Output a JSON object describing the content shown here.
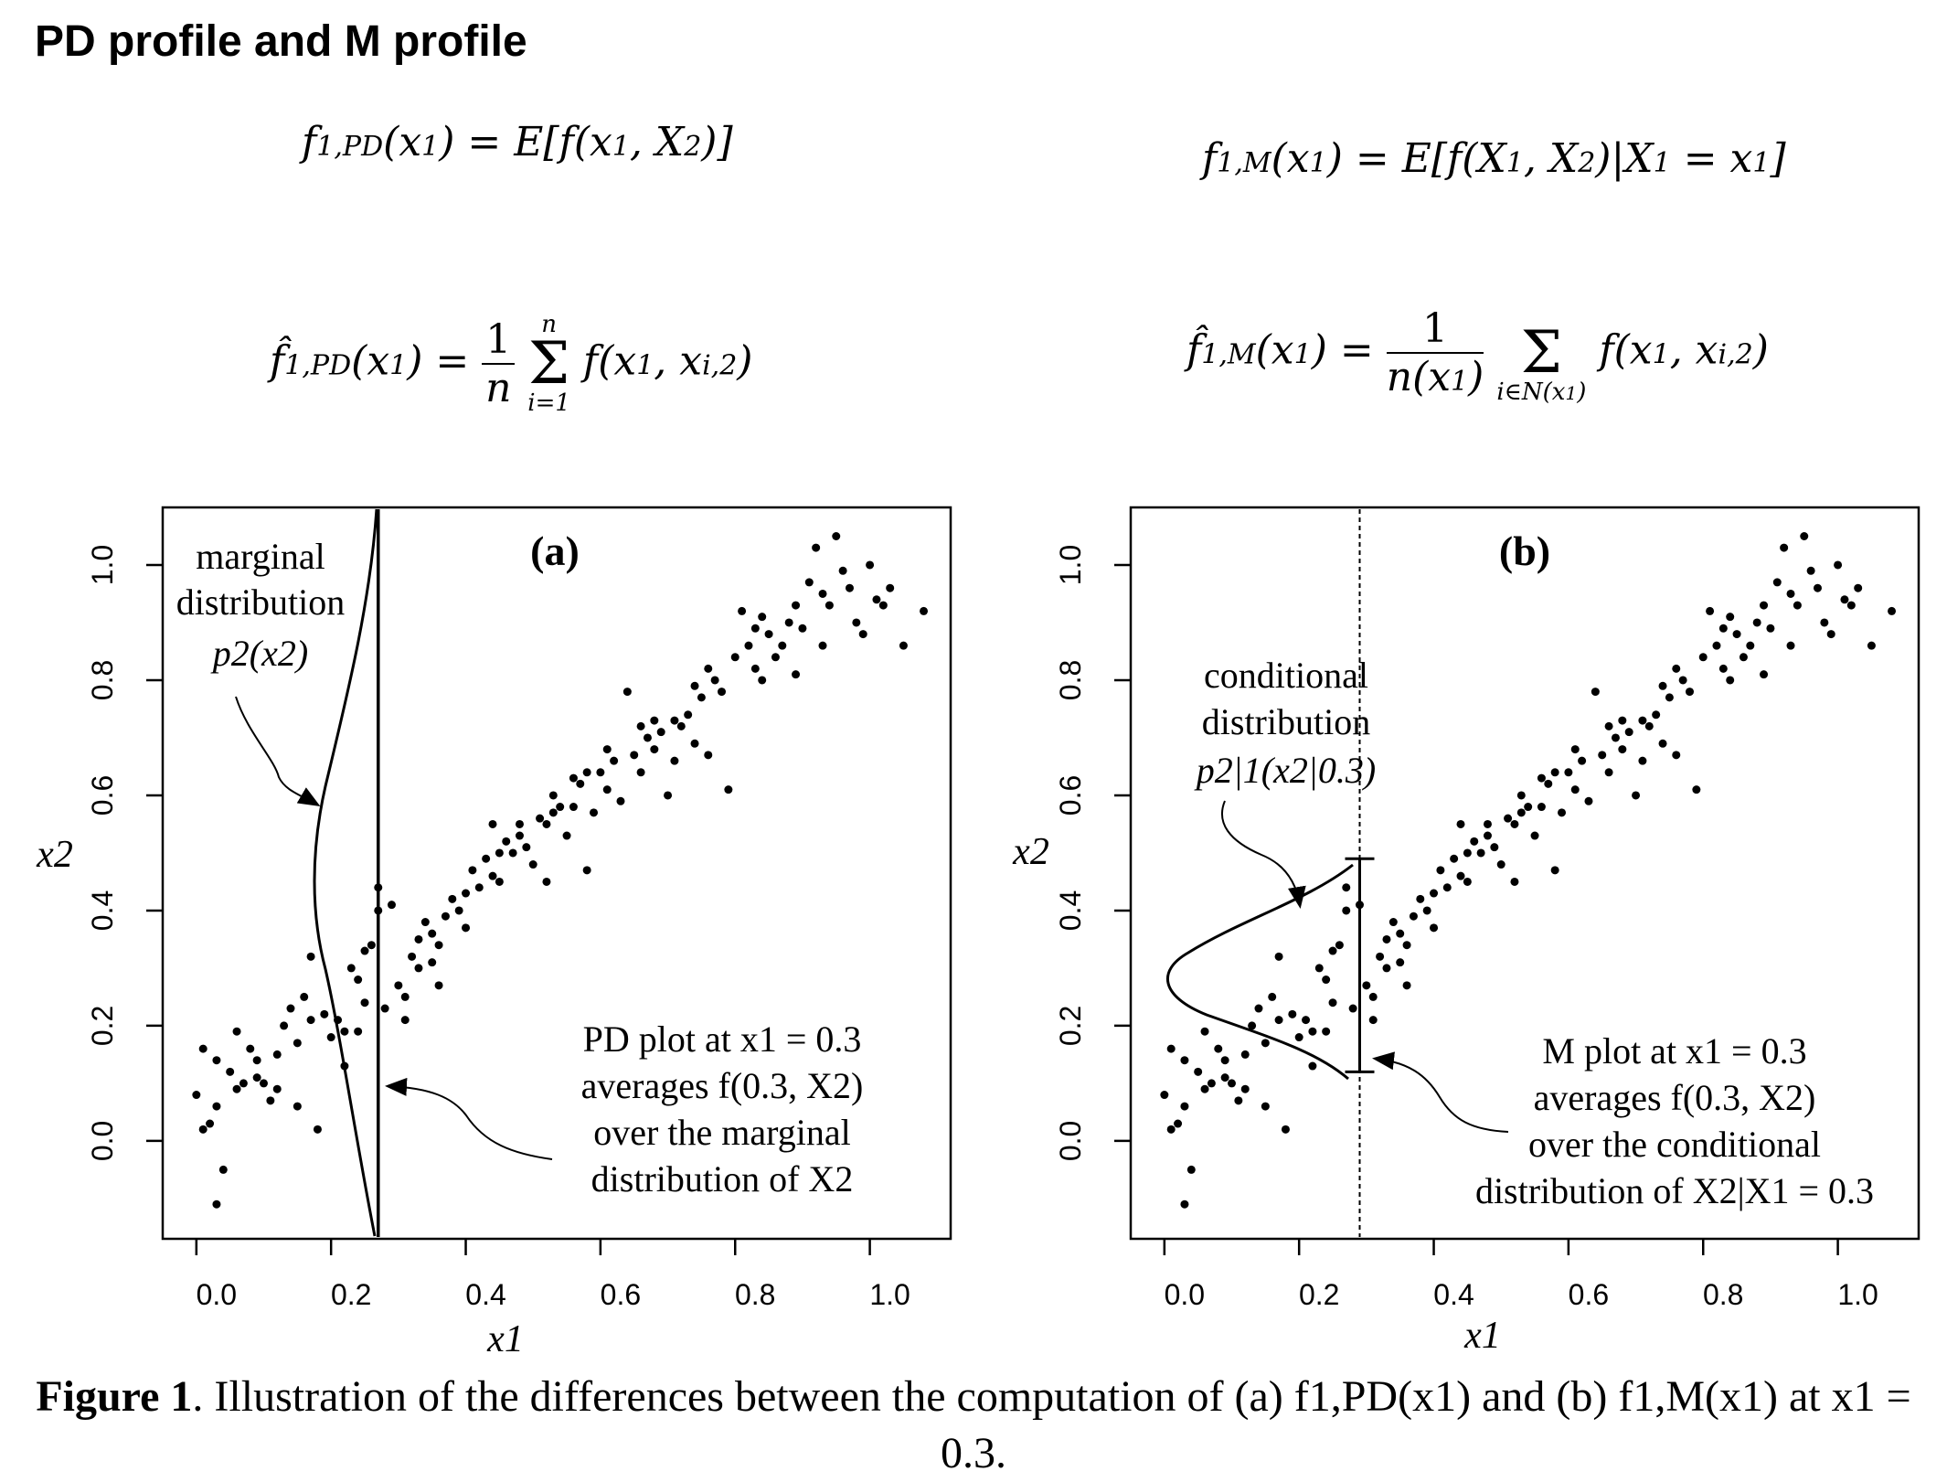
{
  "page_title": "PD profile and M profile",
  "equations": {
    "pd_def": "f1,PD(x1) = E[f(x1, X2)]",
    "m_def": "f1,M(x1) = E[f(X1, X2)|X1 = x1]",
    "pd_est": "f̂1,PD(x1) = (1/n) Σ_{i=1}^{n} f(x1, xi,2)",
    "m_est": "f̂1,M(x1) = (1/n(x1)) Σ_{i∈N(x1)} f(x1, xi,2)"
  },
  "caption": {
    "label": "Figure 1",
    "text": "Illustration of the differences between the computation of (a) f1,PD(x1) and (b) f1,M(x1) at x1 = 0.3."
  },
  "colors": {
    "points": "#000000",
    "axes": "#000000",
    "background": "#ffffff"
  },
  "chart_data": [
    {
      "type": "scatter",
      "panel_label": "(a)",
      "xlabel": "x1",
      "ylabel": "x2",
      "xlim": [
        -0.05,
        1.12
      ],
      "ylim": [
        -0.17,
        1.1
      ],
      "xticks": [
        0.0,
        0.2,
        0.4,
        0.6,
        0.8,
        1.0
      ],
      "yticks": [
        0.0,
        0.2,
        0.4,
        0.6,
        0.8,
        1.0
      ],
      "annotations": {
        "marginal": [
          "marginal",
          "distribution",
          "p2(x2)"
        ],
        "pd_plot": [
          "PD plot at x1 = 0.3",
          "averages f(0.3, X2)",
          "over the marginal",
          "distribution of X2"
        ]
      },
      "vertical_line_x": 0.27,
      "curve": "marginal density of x2 (mode ≈ 0.45)"
    },
    {
      "type": "scatter",
      "panel_label": "(b)",
      "xlabel": "x1",
      "ylabel": "x2",
      "xlim": [
        -0.05,
        1.12
      ],
      "ylim": [
        -0.17,
        1.1
      ],
      "xticks": [
        0.0,
        0.2,
        0.4,
        0.6,
        0.8,
        1.0
      ],
      "yticks": [
        0.0,
        0.2,
        0.4,
        0.6,
        0.8,
        1.0
      ],
      "annotations": {
        "conditional": [
          "conditional",
          "distribution",
          "p2|1(x2|0.3)"
        ],
        "m_plot": [
          "M plot at x1 = 0.3",
          "averages f(0.3, X2)",
          "over the conditional",
          "distribution of X2|X1 = 0.3"
        ]
      },
      "vertical_line_x": 0.29,
      "interval": [
        0.12,
        0.49
      ],
      "curve": "conditional density of x2 given x1 = 0.3 (mode ≈ 0.3)"
    }
  ],
  "points": [
    [
      0.0,
      0.08
    ],
    [
      0.01,
      0.02
    ],
    [
      0.02,
      0.03
    ],
    [
      0.03,
      -0.11
    ],
    [
      0.04,
      -0.05
    ],
    [
      0.01,
      0.16
    ],
    [
      0.03,
      0.14
    ],
    [
      0.05,
      0.12
    ],
    [
      0.06,
      0.19
    ],
    [
      0.07,
      0.1
    ],
    [
      0.08,
      0.16
    ],
    [
      0.09,
      0.11
    ],
    [
      0.1,
      0.1
    ],
    [
      0.11,
      0.07
    ],
    [
      0.12,
      0.15
    ],
    [
      0.13,
      0.2
    ],
    [
      0.14,
      0.23
    ],
    [
      0.15,
      0.17
    ],
    [
      0.16,
      0.25
    ],
    [
      0.17,
      0.32
    ],
    [
      0.18,
      0.02
    ],
    [
      0.19,
      0.22
    ],
    [
      0.2,
      0.18
    ],
    [
      0.21,
      0.21
    ],
    [
      0.22,
      0.13
    ],
    [
      0.23,
      0.3
    ],
    [
      0.24,
      0.28
    ],
    [
      0.25,
      0.33
    ],
    [
      0.26,
      0.34
    ],
    [
      0.27,
      0.44
    ],
    [
      0.28,
      0.23
    ],
    [
      0.29,
      0.41
    ],
    [
      0.3,
      0.27
    ],
    [
      0.31,
      0.21
    ],
    [
      0.32,
      0.32
    ],
    [
      0.33,
      0.35
    ],
    [
      0.34,
      0.38
    ],
    [
      0.35,
      0.36
    ],
    [
      0.36,
      0.34
    ],
    [
      0.37,
      0.39
    ],
    [
      0.38,
      0.42
    ],
    [
      0.39,
      0.4
    ],
    [
      0.4,
      0.37
    ],
    [
      0.41,
      0.47
    ],
    [
      0.42,
      0.44
    ],
    [
      0.43,
      0.49
    ],
    [
      0.44,
      0.46
    ],
    [
      0.45,
      0.45
    ],
    [
      0.46,
      0.52
    ],
    [
      0.47,
      0.5
    ],
    [
      0.48,
      0.53
    ],
    [
      0.49,
      0.51
    ],
    [
      0.5,
      0.48
    ],
    [
      0.51,
      0.56
    ],
    [
      0.52,
      0.55
    ],
    [
      0.53,
      0.6
    ],
    [
      0.54,
      0.58
    ],
    [
      0.55,
      0.53
    ],
    [
      0.56,
      0.63
    ],
    [
      0.57,
      0.62
    ],
    [
      0.58,
      0.47
    ],
    [
      0.59,
      0.57
    ],
    [
      0.6,
      0.64
    ],
    [
      0.61,
      0.61
    ],
    [
      0.62,
      0.66
    ],
    [
      0.63,
      0.59
    ],
    [
      0.64,
      0.78
    ],
    [
      0.65,
      0.67
    ],
    [
      0.66,
      0.64
    ],
    [
      0.67,
      0.7
    ],
    [
      0.68,
      0.68
    ],
    [
      0.69,
      0.71
    ],
    [
      0.7,
      0.6
    ],
    [
      0.71,
      0.73
    ],
    [
      0.72,
      0.72
    ],
    [
      0.73,
      0.74
    ],
    [
      0.74,
      0.69
    ],
    [
      0.75,
      0.77
    ],
    [
      0.76,
      0.67
    ],
    [
      0.77,
      0.8
    ],
    [
      0.78,
      0.78
    ],
    [
      0.79,
      0.61
    ],
    [
      0.8,
      0.84
    ],
    [
      0.81,
      0.92
    ],
    [
      0.82,
      0.86
    ],
    [
      0.83,
      0.82
    ],
    [
      0.84,
      0.8
    ],
    [
      0.85,
      0.88
    ],
    [
      0.86,
      0.84
    ],
    [
      0.87,
      0.86
    ],
    [
      0.88,
      0.9
    ],
    [
      0.89,
      0.93
    ],
    [
      0.9,
      0.89
    ],
    [
      0.91,
      0.97
    ],
    [
      0.92,
      1.03
    ],
    [
      0.93,
      0.95
    ],
    [
      0.94,
      0.93
    ],
    [
      0.95,
      1.05
    ],
    [
      0.96,
      0.99
    ],
    [
      0.97,
      0.96
    ],
    [
      0.98,
      0.9
    ],
    [
      0.99,
      0.88
    ],
    [
      1.0,
      1.0
    ],
    [
      1.01,
      0.94
    ],
    [
      1.02,
      0.93
    ],
    [
      1.03,
      0.96
    ],
    [
      1.05,
      0.86
    ],
    [
      1.08,
      0.92
    ],
    [
      0.84,
      0.91
    ],
    [
      0.76,
      0.82
    ],
    [
      0.56,
      0.58
    ],
    [
      0.61,
      0.68
    ],
    [
      0.44,
      0.55
    ],
    [
      0.52,
      0.45
    ],
    [
      0.36,
      0.27
    ],
    [
      0.33,
      0.3
    ],
    [
      0.15,
      0.06
    ],
    [
      0.09,
      0.14
    ],
    [
      0.12,
      0.09
    ],
    [
      0.22,
      0.19
    ],
    [
      0.25,
      0.24
    ],
    [
      0.24,
      0.19
    ],
    [
      0.66,
      0.72
    ],
    [
      0.71,
      0.66
    ],
    [
      0.74,
      0.79
    ],
    [
      0.89,
      0.81
    ],
    [
      0.83,
      0.89
    ],
    [
      0.93,
      0.86
    ],
    [
      0.48,
      0.55
    ],
    [
      0.4,
      0.43
    ],
    [
      0.35,
      0.31
    ],
    [
      0.31,
      0.25
    ],
    [
      0.27,
      0.4
    ],
    [
      0.17,
      0.21
    ],
    [
      0.06,
      0.09
    ],
    [
      0.03,
      0.06
    ],
    [
      0.58,
      0.64
    ],
    [
      0.68,
      0.73
    ],
    [
      0.53,
      0.57
    ],
    [
      0.45,
      0.5
    ]
  ]
}
